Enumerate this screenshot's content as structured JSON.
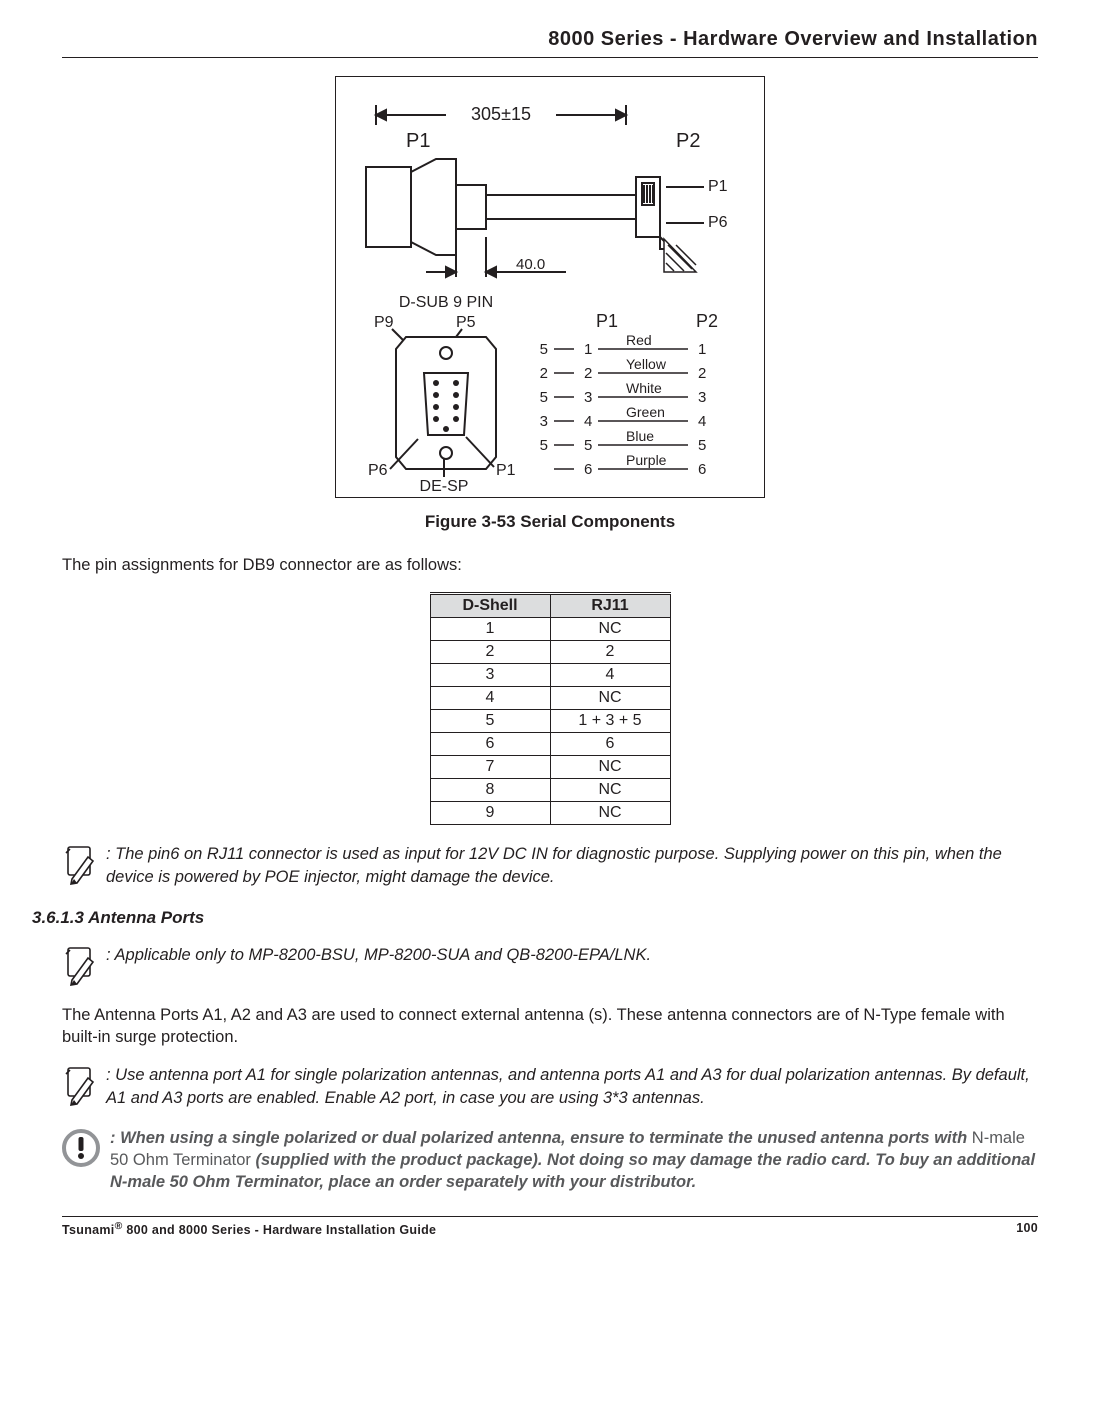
{
  "header": {
    "title": "8000 Series - Hardware Overview and Installation"
  },
  "figure": {
    "caption": "Figure 3-53 Serial Components",
    "labels": {
      "dim_top": "305±15",
      "p1_top": "P1",
      "p2_top": "P2",
      "p1_side": "P1",
      "p6_side": "P6",
      "dim_mid": "40.0",
      "dsub_title": "D-SUB  9  PIN",
      "p9": "P9",
      "p5": "P5",
      "de_sp": "DE-SP",
      "p6_bot": "P6",
      "p1_bot": "P1",
      "col_p1": "P1",
      "col_p2": "P2",
      "wire_rows": [
        {
          "left_n": "5",
          "left_i": "1",
          "color": "Red",
          "right_i": "1"
        },
        {
          "left_n": "2",
          "left_i": "2",
          "color": "Yellow",
          "right_i": "2"
        },
        {
          "left_n": "5",
          "left_i": "3",
          "color": "White",
          "right_i": "3"
        },
        {
          "left_n": "3",
          "left_i": "4",
          "color": "Green",
          "right_i": "4"
        },
        {
          "left_n": "5",
          "left_i": "5",
          "color": "Blue",
          "right_i": "5"
        },
        {
          "left_n": "",
          "left_i": "6",
          "color": "Purple",
          "right_i": "6"
        }
      ]
    }
  },
  "intro": "The pin assignments for DB9 connector are as follows:",
  "table": {
    "headers": [
      "D-Shell",
      "RJ11"
    ],
    "rows": [
      [
        "1",
        "NC"
      ],
      [
        "2",
        "2"
      ],
      [
        "3",
        "4"
      ],
      [
        "4",
        "NC"
      ],
      [
        "5",
        "1 + 3 + 5"
      ],
      [
        "6",
        "6"
      ],
      [
        "7",
        "NC"
      ],
      [
        "8",
        "NC"
      ],
      [
        "9",
        "NC"
      ]
    ]
  },
  "note1": ": The pin6 on RJ11 connector is used as input for 12V DC IN for diagnostic purpose. Supplying power on this pin, when the device is powered by POE injector, might damage the device.",
  "subheading": "3.6.1.3 Antenna Ports",
  "note2": ": Applicable only to MP-8200-BSU, MP-8200-SUA and QB-8200-EPA/LNK.",
  "para2": "The Antenna Ports A1, A2 and A3 are used to connect external antenna (s). These antenna connectors are of N-Type female with built-in surge protection.",
  "note3": ": Use antenna port A1 for single polarization antennas, and antenna ports A1 and A3 for dual polarization antennas. By default, A1 and A3 ports are enabled. Enable A2 port, in case you are using 3*3 antennas.",
  "warn": {
    "pre": ": When using a single polarized or dual polarized antenna, ensure to terminate the unused antenna ports with ",
    "mid": "N-male 50 Ohm Terminator",
    "post": " (supplied with the product package). Not doing so may damage the radio card. To buy an additional N-male 50 Ohm Terminator, place an order separately with your distributor."
  },
  "footer": {
    "left_pre": "Tsunami",
    "left_sup": "®",
    "left_post": " 800 and 8000 Series - Hardware Installation Guide",
    "page": "100"
  },
  "colors": {
    "text": "#231f20",
    "table_header_bg": "#dcddde",
    "warn_text": "#58595b",
    "warn_icon_outer": "#929497",
    "warn_icon_bang": "#231f20",
    "pencil_stroke": "#231f20"
  }
}
